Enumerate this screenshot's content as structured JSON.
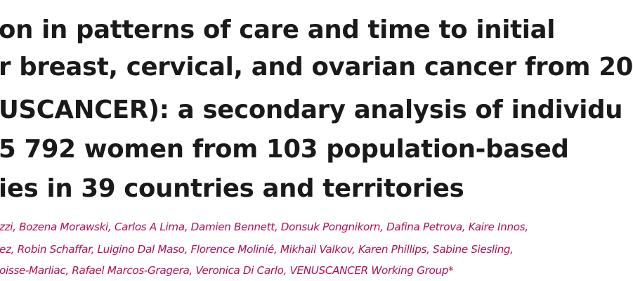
{
  "title": {
    "lines": [
      "on in patterns of care and time to initial",
      "r breast, cervical, and ovarian cancer from 20",
      "USCANCER): a secondary analysis of individu",
      "5 792 women from 103 population-based",
      "ies in 39 countries and territories"
    ]
  },
  "authors": {
    "lines": [
      "zzi, Bozena Morawski, Carlos A Lima, Damien Bennett, Donsuk Pongnikorn, Dafina Petrova, Kaire Innos,",
      "ez, Robin Schaffar, Luigino Dal Maso, Florence Molinié, Mikhail Valkov, Karen Phillips, Sabine Siesling,",
      "oisse-Marliac, Rafael Marcos-Gragera, Veronica Di Carlo, VENUSCANCER Working Group*"
    ],
    "color": "#b40f55"
  }
}
